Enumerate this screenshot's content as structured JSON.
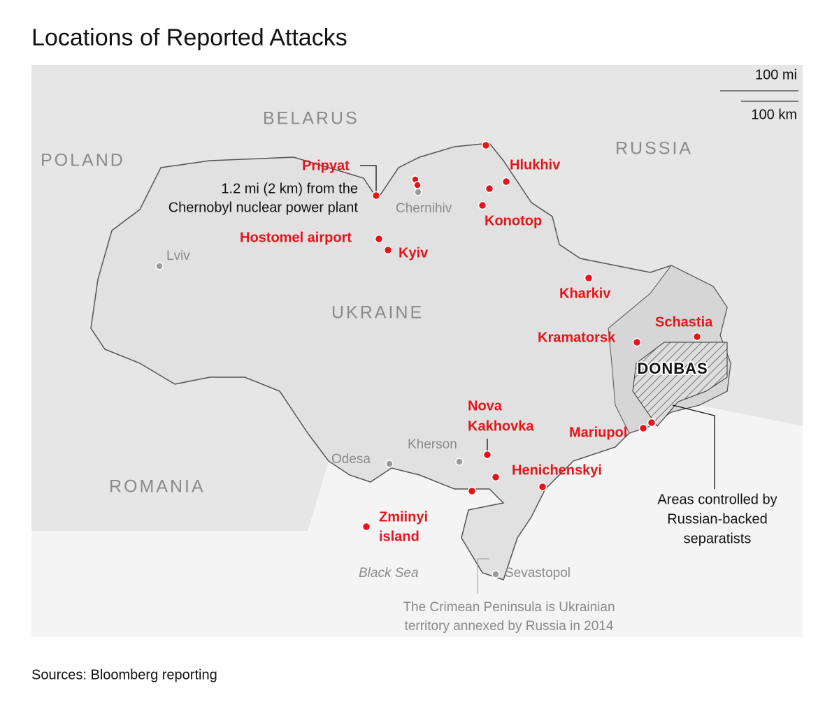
{
  "title": "Locations of Reported Attacks",
  "scale": {
    "miles": "100 mi",
    "kilometers": "100 km"
  },
  "countries": [
    "BELARUS",
    "POLAND",
    "RUSSIA",
    "UKRAINE",
    "ROMANIA"
  ],
  "cities": [
    "Lviv",
    "Chernihiv",
    "Kherson",
    "Odesa",
    "Sevastopol"
  ],
  "water": "Black Sea",
  "attacks": {
    "pripyat": "Pripyat",
    "hlukhiv": "Hlukhiv",
    "konotop": "Konotop",
    "hostomel": "Hostomel airport",
    "kyiv": "Kyiv",
    "kharkiv": "Kharkiv",
    "schastia": "Schastia",
    "kramatorsk": "Kramatorsk",
    "nova_kakhovka": [
      "Nova",
      "Kakhovka"
    ],
    "mariupol": "Mariupol",
    "henichenskyi": "Henichenskyi",
    "zmiinyi": [
      "Zmiinyi",
      "island"
    ]
  },
  "annotations": {
    "chernobyl": [
      "1.2 mi (2 km) from the",
      "Chernobyl nuclear power plant"
    ],
    "donbas": "DONBAS",
    "separatists": [
      "Areas controlled by",
      "Russian-backed",
      "separatists"
    ],
    "crimea": [
      "The Crimean Peninsula is Ukrainian",
      "territory annexed by Russia in 2014"
    ]
  },
  "source": "Sources: Bloomberg reporting"
}
